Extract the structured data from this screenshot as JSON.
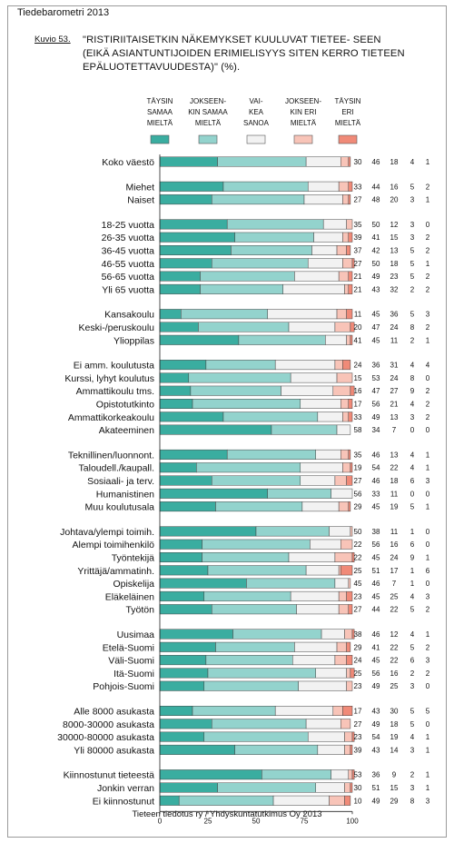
{
  "header": "Tiedebarometri 2013",
  "kuvio_label": "Kuvio 53.",
  "title": "\"RISTIRIITAISETKIN NÄKEMYKSET KUULUVAT TIETEE- SEEN (EIKÄ ASIANTUNTIJOIDEN ERIMIELISYYS SITEN KERRO TIETEEN EPÄLUOTETTAVUUDESTA)\" (%).",
  "footer": "Tieteen tiedotus ry / Yhdyskuntatutkimus Oy 2013",
  "colors": {
    "taysin_samaa": "#3aada0",
    "jokseenkin_samaa": "#93d3cd",
    "vaikea": "#f2f2f2",
    "jokseenkin_eri": "#f8c4b8",
    "taysin_eri": "#f08a78"
  },
  "chart_data": {
    "type": "bar",
    "orientation": "horizontal",
    "stacked": true,
    "xlim": [
      0,
      100
    ],
    "xticks": [
      "0",
      "25",
      "50",
      "75",
      "100"
    ],
    "legend": [
      {
        "lines": [
          "TÄYSIN",
          "SAMAA",
          "MIELTÄ"
        ],
        "color_key": "taysin_samaa"
      },
      {
        "lines": [
          "JOKSEEN-",
          "KIN SAMAA",
          "MIELTÄ"
        ],
        "color_key": "jokseenkin_samaa"
      },
      {
        "lines": [
          "VAI-",
          "KEA",
          "SANOA"
        ],
        "color_key": "vaikea"
      },
      {
        "lines": [
          "JOKSEEN-",
          "KIN ERI",
          "MIELTÄ"
        ],
        "color_key": "jokseenkin_eri"
      },
      {
        "lines": [
          "TÄYSIN",
          "ERI",
          "MIELTÄ"
        ],
        "color_key": "taysin_eri"
      }
    ],
    "groups": [
      {
        "rows": [
          {
            "label": "Koko väestö",
            "values": [
              30,
              46,
              18,
              4,
              1
            ]
          }
        ]
      },
      {
        "rows": [
          {
            "label": "Miehet",
            "values": [
              33,
              44,
              16,
              5,
              2
            ]
          },
          {
            "label": "Naiset",
            "values": [
              27,
              48,
              20,
              3,
              1
            ]
          }
        ]
      },
      {
        "rows": [
          {
            "label": "18-25 vuotta",
            "values": [
              35,
              50,
              12,
              3,
              0
            ]
          },
          {
            "label": "26-35 vuotta",
            "values": [
              39,
              41,
              15,
              3,
              2
            ]
          },
          {
            "label": "36-45 vuotta",
            "values": [
              37,
              42,
              13,
              5,
              2
            ]
          },
          {
            "label": "46-55 vuotta",
            "values": [
              27,
              50,
              18,
              5,
              1
            ]
          },
          {
            "label": "56-65 vuotta",
            "values": [
              21,
              49,
              23,
              5,
              2
            ]
          },
          {
            "label": "Yli 65 vuotta",
            "values": [
              21,
              43,
              32,
              2,
              2
            ]
          }
        ]
      },
      {
        "rows": [
          {
            "label": "Kansakoulu",
            "values": [
              11,
              45,
              36,
              5,
              3
            ]
          },
          {
            "label": "Keski-/peruskoulu",
            "values": [
              20,
              47,
              24,
              8,
              2
            ]
          },
          {
            "label": "Ylioppilas",
            "values": [
              41,
              45,
              11,
              2,
              1
            ]
          }
        ]
      },
      {
        "rows": [
          {
            "label": "Ei amm. koulutusta",
            "values": [
              24,
              36,
              31,
              4,
              4
            ]
          },
          {
            "label": "Kurssi, lyhyt koulutus",
            "values": [
              15,
              53,
              24,
              8,
              0
            ]
          },
          {
            "label": "Ammattikoulu tms.",
            "values": [
              16,
              47,
              27,
              9,
              2
            ]
          },
          {
            "label": "Opistotutkinto",
            "values": [
              17,
              56,
              21,
              4,
              2
            ]
          },
          {
            "label": "Ammattikorkeakoulu",
            "values": [
              33,
              49,
              13,
              3,
              2
            ]
          },
          {
            "label": "Akateeminen",
            "values": [
              58,
              34,
              7,
              0,
              0
            ]
          }
        ]
      },
      {
        "rows": [
          {
            "label": "Teknillinen/luonnont.",
            "values": [
              35,
              46,
              13,
              4,
              1
            ]
          },
          {
            "label": "Taloudell./kaupall.",
            "values": [
              19,
              54,
              22,
              4,
              1
            ]
          },
          {
            "label": "Sosiaali- ja terv.",
            "values": [
              27,
              46,
              18,
              6,
              3
            ]
          },
          {
            "label": "Humanistinen",
            "values": [
              56,
              33,
              11,
              0,
              0
            ]
          },
          {
            "label": "Muu koulutusala",
            "values": [
              29,
              45,
              19,
              5,
              1
            ]
          }
        ]
      },
      {
        "rows": [
          {
            "label": "Johtava/ylempi toimih.",
            "values": [
              50,
              38,
              11,
              1,
              0
            ]
          },
          {
            "label": "Alempi toimihenkilö",
            "values": [
              22,
              56,
              16,
              6,
              0
            ]
          },
          {
            "label": "Työntekijä",
            "values": [
              22,
              45,
              24,
              9,
              1
            ]
          },
          {
            "label": "Yrittäjä/ammatinh.",
            "values": [
              25,
              51,
              17,
              1,
              6
            ]
          },
          {
            "label": "Opiskelija",
            "values": [
              45,
              46,
              7,
              1,
              0
            ]
          },
          {
            "label": "Eläkeläinen",
            "values": [
              23,
              45,
              25,
              4,
              3
            ]
          },
          {
            "label": "Työtön",
            "values": [
              27,
              44,
              22,
              5,
              2
            ]
          }
        ]
      },
      {
        "rows": [
          {
            "label": "Uusimaa",
            "values": [
              38,
              46,
              12,
              4,
              1
            ]
          },
          {
            "label": "Etelä-Suomi",
            "values": [
              29,
              41,
              22,
              5,
              2
            ]
          },
          {
            "label": "Väli-Suomi",
            "values": [
              24,
              45,
              22,
              6,
              3
            ]
          },
          {
            "label": "Itä-Suomi",
            "values": [
              25,
              56,
              16,
              2,
              2
            ]
          },
          {
            "label": "Pohjois-Suomi",
            "values": [
              23,
              49,
              25,
              3,
              0
            ]
          }
        ]
      },
      {
        "rows": [
          {
            "label": "Alle 8000 asukasta",
            "values": [
              17,
              43,
              30,
              5,
              5
            ]
          },
          {
            "label": "8000-30000 asukasta",
            "values": [
              27,
              49,
              18,
              5,
              0
            ]
          },
          {
            "label": "30000-80000 asukasta",
            "values": [
              23,
              54,
              19,
              4,
              1
            ]
          },
          {
            "label": "Yli 80000 asukasta",
            "values": [
              39,
              43,
              14,
              3,
              1
            ]
          }
        ]
      },
      {
        "rows": [
          {
            "label": "Kiinnostunut tieteestä",
            "values": [
              53,
              36,
              9,
              2,
              1
            ]
          },
          {
            "label": "Jonkin verran",
            "values": [
              30,
              51,
              15,
              3,
              1
            ]
          },
          {
            "label": "Ei kiinnostunut",
            "values": [
              10,
              49,
              29,
              8,
              3
            ]
          }
        ]
      }
    ]
  }
}
